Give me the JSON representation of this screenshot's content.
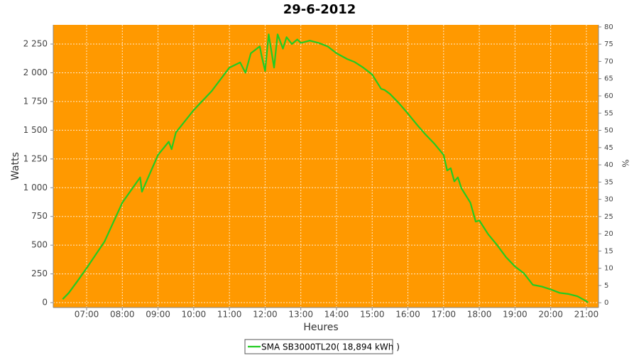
{
  "chart_data": {
    "type": "line",
    "title": "29-6-2012",
    "xlabel": "Heures",
    "ylabel": "Watts",
    "y2label": "%",
    "x": [
      6.33,
      6.5,
      6.75,
      7.0,
      7.5,
      8.0,
      8.5,
      8.55,
      9.0,
      9.3,
      9.38,
      9.5,
      10.0,
      10.5,
      11.0,
      11.3,
      11.45,
      11.6,
      11.85,
      11.9,
      12.0,
      12.1,
      12.25,
      12.35,
      12.5,
      12.6,
      12.75,
      12.9,
      13.0,
      13.25,
      13.5,
      13.75,
      14.0,
      14.3,
      14.5,
      14.75,
      15.0,
      15.25,
      15.35,
      15.5,
      15.75,
      16.0,
      16.25,
      16.5,
      16.75,
      17.0,
      17.1,
      17.2,
      17.3,
      17.4,
      17.5,
      17.75,
      17.9,
      18.0,
      18.25,
      18.5,
      18.75,
      19.0,
      19.25,
      19.5,
      19.75,
      20.0,
      20.25,
      20.5,
      20.75,
      21.0,
      21.05
    ],
    "series": [
      {
        "name": "SMA SB3000TL20( 18,894 kWh )",
        "color": "#22cc22",
        "values": [
          30,
          85,
          190,
          300,
          530,
          870,
          1090,
          965,
          1285,
          1400,
          1335,
          1480,
          1675,
          1840,
          2045,
          2090,
          2000,
          2170,
          2230,
          2150,
          2015,
          2335,
          2045,
          2335,
          2210,
          2310,
          2250,
          2290,
          2260,
          2280,
          2260,
          2230,
          2170,
          2120,
          2095,
          2045,
          1985,
          1860,
          1850,
          1815,
          1735,
          1645,
          1550,
          1460,
          1380,
          1285,
          1150,
          1170,
          1055,
          1090,
          995,
          870,
          705,
          715,
          595,
          500,
          395,
          315,
          255,
          155,
          140,
          115,
          85,
          75,
          55,
          12,
          0
        ]
      }
    ],
    "xlim": [
      6.065,
      21.34
    ],
    "xticks": [
      {
        "value": 7,
        "label": "07:00"
      },
      {
        "value": 8,
        "label": "08:00"
      },
      {
        "value": 9,
        "label": "09:00"
      },
      {
        "value": 10,
        "label": "10:00"
      },
      {
        "value": 11,
        "label": "11:00"
      },
      {
        "value": 12,
        "label": "12:00"
      },
      {
        "value": 13,
        "label": "13:00"
      },
      {
        "value": 14,
        "label": "14:00"
      },
      {
        "value": 15,
        "label": "15:00"
      },
      {
        "value": 16,
        "label": "16:00"
      },
      {
        "value": 17,
        "label": "17:00"
      },
      {
        "value": 18,
        "label": "18:00"
      },
      {
        "value": 19,
        "label": "19:00"
      },
      {
        "value": 20,
        "label": "20:00"
      },
      {
        "value": 21,
        "label": "21:00"
      }
    ],
    "ylim": [
      -43,
      2417
    ],
    "yticks": [
      0,
      250,
      500,
      750,
      {
        "value": 1000,
        "label": "1 000"
      },
      {
        "value": 1250,
        "label": "1 250"
      },
      {
        "value": 1500,
        "label": "1 500"
      },
      {
        "value": 1750,
        "label": "1 750"
      },
      {
        "value": 2000,
        "label": "2 000"
      },
      {
        "value": 2250,
        "label": "2 250"
      }
    ],
    "y2lim": [
      -1.4,
      80.6
    ],
    "y2ticks": [
      0,
      5,
      10,
      15,
      20,
      25,
      30,
      35,
      40,
      45,
      50,
      55,
      60,
      65,
      70,
      75,
      80
    ],
    "grid": true,
    "background": "#ff9900"
  }
}
